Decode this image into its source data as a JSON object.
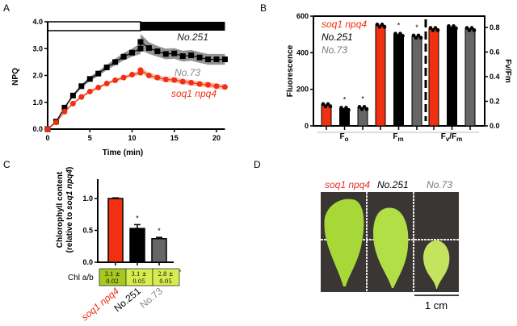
{
  "colors": {
    "red": "#f03010",
    "black": "#000000",
    "gray": "#666666",
    "table_dark": "#a8c820",
    "table_light": "#d8ec50"
  },
  "chart_data": [
    {
      "panel": "A",
      "type": "line",
      "xlabel": "Time (min)",
      "ylabel": "NPQ",
      "xlim": [
        0,
        21
      ],
      "ylim": [
        0,
        4.0
      ],
      "xticks": [
        "0",
        "5",
        "10",
        "15",
        "20"
      ],
      "yticks": [
        "0.0",
        "1.0",
        "2.0",
        "3.0",
        "4.0"
      ],
      "light_period": [
        0,
        11
      ],
      "dark_period": [
        11,
        21
      ],
      "series": [
        {
          "name": "No.251",
          "color": "#000000",
          "x": [
            0,
            1,
            2,
            3,
            4,
            5,
            6,
            7,
            8,
            9,
            10,
            11,
            11,
            12,
            13,
            14,
            15,
            16,
            17,
            18,
            19,
            20,
            21
          ],
          "values": [
            0,
            0.28,
            0.8,
            1.25,
            1.6,
            1.87,
            2.07,
            2.3,
            2.5,
            2.7,
            2.85,
            3.0,
            3.25,
            3.02,
            2.9,
            2.8,
            2.82,
            2.72,
            2.75,
            2.67,
            2.6,
            2.6,
            2.6
          ],
          "error": [
            0,
            0.03,
            0.05,
            0.06,
            0.07,
            0.08,
            0.09,
            0.1,
            0.12,
            0.14,
            0.15,
            0.2,
            0.3,
            0.22,
            0.2,
            0.2,
            0.2,
            0.2,
            0.2,
            0.2,
            0.2,
            0.2,
            0.2
          ]
        },
        {
          "name": "No.73",
          "color": "#666666"
        },
        {
          "name": "soq1 npq4",
          "color": "#f03010",
          "x": [
            0,
            1,
            2,
            3,
            4,
            5,
            6,
            7,
            8,
            9,
            10,
            11,
            11,
            12,
            13,
            14,
            15,
            16,
            17,
            18,
            19,
            20,
            21
          ],
          "values": [
            0,
            0.25,
            0.65,
            0.95,
            1.2,
            1.4,
            1.55,
            1.7,
            1.82,
            1.92,
            2.03,
            2.1,
            2.2,
            2.0,
            1.92,
            1.85,
            1.83,
            1.77,
            1.73,
            1.68,
            1.65,
            1.6,
            1.57
          ],
          "error": [
            0,
            0.02,
            0.03,
            0.04,
            0.04,
            0.05,
            0.05,
            0.05,
            0.06,
            0.06,
            0.07,
            0.08,
            0.1,
            0.1,
            0.1,
            0.1,
            0.1,
            0.1,
            0.1,
            0.1,
            0.1,
            0.1,
            0.1
          ]
        }
      ]
    },
    {
      "panel": "B",
      "type": "bar",
      "ylabel": "Fluorescence",
      "y2label": "Fv/Fm",
      "ylim": [
        0,
        600
      ],
      "y2lim": [
        0,
        0.88
      ],
      "yticks": [
        "0",
        "200",
        "400",
        "600"
      ],
      "y2ticks": [
        "0.0",
        "0.2",
        "0.4",
        "0.6",
        "0.8"
      ],
      "groups": [
        {
          "label": "F",
          "sub": "o"
        },
        {
          "label": "F",
          "sub": "m"
        },
        {
          "label": "F",
          "sub": "v",
          "rest": "/F",
          "sub2": "m"
        }
      ],
      "legend": [
        "soq1 npq4",
        "No.251",
        "No.73"
      ],
      "values": [
        [
          115,
          95,
          100
        ],
        [
          550,
          500,
          490
        ],
        [
          0.79,
          0.805,
          0.79
        ]
      ],
      "significance": [
        [
          "",
          "*",
          "*"
        ],
        [
          "",
          "*",
          "*"
        ],
        [
          "",
          "",
          ""
        ]
      ]
    },
    {
      "panel": "C",
      "type": "bar",
      "ylabel": "Chlorophyll content",
      "ylabel2_prefix": "(relative to ",
      "ylabel2_italic": "soq1 npq4",
      "ylabel2_suffix": ")",
      "ylim": [
        0,
        1.3
      ],
      "yticks": [
        "0.0",
        "0.5",
        "1.0"
      ],
      "categories": [
        "soq1 npq4",
        "No.251",
        "No.73"
      ],
      "values": [
        1.0,
        0.53,
        0.37
      ],
      "error": [
        0.01,
        0.06,
        0.02
      ],
      "significance": [
        "",
        "*",
        "*"
      ],
      "table_label": "Chl a/b",
      "table": [
        [
          "3.1 ±",
          "0.02"
        ],
        [
          "3.1 ±",
          "0.05"
        ],
        [
          "2.8 ±",
          "0.05"
        ]
      ],
      "table_mark": "*"
    }
  ],
  "panel_letters": [
    "A",
    "B",
    "C",
    "D"
  ],
  "panelD": {
    "labels": [
      "soq1 npq4",
      "No.251",
      "No.73"
    ],
    "scale_bar": "1 cm"
  }
}
